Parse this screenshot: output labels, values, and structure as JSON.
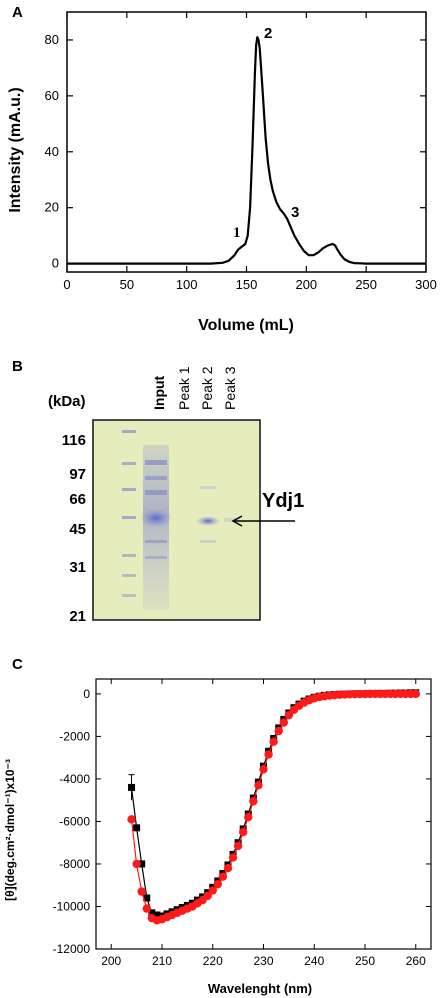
{
  "panels": {
    "a": "A",
    "b": "B",
    "c": "C"
  },
  "chart_data": [
    {
      "panel": "A",
      "type": "line",
      "xlabel": "Volume (mL)",
      "ylabel": "Intensity (mA.u.)",
      "xlim": [
        0,
        300
      ],
      "ylim": [
        -3,
        90
      ],
      "xticks": [
        0,
        50,
        100,
        150,
        200,
        250,
        300
      ],
      "yticks": [
        0,
        20,
        40,
        60,
        80
      ],
      "series": [
        {
          "x": [
            0,
            100,
            120,
            130,
            135,
            140,
            143,
            146,
            149,
            151,
            153,
            155,
            157,
            158,
            159,
            160,
            161,
            162,
            164,
            166,
            168,
            170,
            172,
            175,
            178,
            181,
            184,
            187,
            190,
            194,
            198,
            202,
            206,
            210,
            214,
            218,
            222,
            224,
            226,
            229,
            232,
            236,
            240,
            245,
            250,
            260,
            280,
            300
          ],
          "y": [
            0,
            0,
            0,
            0.3,
            1,
            3,
            5,
            6,
            7,
            10,
            20,
            42,
            68,
            78,
            81,
            80,
            77,
            71,
            58,
            45,
            36,
            30,
            26,
            22,
            19.5,
            18,
            16,
            13,
            10,
            7,
            4.5,
            3,
            3,
            4,
            5.5,
            6.5,
            7,
            6.5,
            5,
            3,
            1.5,
            0.6,
            0.2,
            0.1,
            0,
            0,
            0,
            0
          ],
          "color": "#000000"
        }
      ],
      "annotations": [
        "1",
        "2",
        "3"
      ]
    },
    {
      "panel": "B",
      "type": "gel",
      "axis_label": "(kDa)",
      "markers": [
        "116",
        "97",
        "66",
        "45",
        "31",
        "21"
      ],
      "lanes": [
        "Input",
        "Peak 1",
        "Peak 2",
        "Peak 3"
      ],
      "band_label": "Ydj1",
      "gel_color": "#e7ecbd"
    },
    {
      "panel": "C",
      "type": "scatter",
      "xlabel": "Wavelenght (nm)",
      "ylabel": "[θ](deg.cm²·dmol⁻¹)x10⁻³",
      "xlim": [
        197,
        263
      ],
      "ylim": [
        -12000,
        700
      ],
      "xticks": [
        200,
        210,
        220,
        230,
        240,
        250,
        260
      ],
      "yticks": [
        0,
        -2000,
        -4000,
        -6000,
        -8000,
        -10000,
        -12000
      ],
      "series": [
        {
          "marker": "square",
          "color": "#000000",
          "x": [
            204,
            205,
            206,
            207,
            208,
            209,
            210,
            211,
            212,
            213,
            214,
            215,
            216,
            217,
            218,
            219,
            220,
            221,
            222,
            223,
            224,
            225,
            226,
            227,
            228,
            229,
            230,
            231,
            232,
            233,
            234,
            235,
            236,
            237,
            238,
            239,
            240,
            241,
            242,
            243,
            244,
            245,
            246,
            247,
            248,
            249,
            250,
            251,
            252,
            253,
            254,
            255,
            256,
            257,
            258,
            259,
            260
          ],
          "y": [
            -4400,
            -6300,
            -8000,
            -9600,
            -10300,
            -10400,
            -10450,
            -10350,
            -10250,
            -10150,
            -10050,
            -9950,
            -9850,
            -9700,
            -9550,
            -9350,
            -9100,
            -8800,
            -8450,
            -8050,
            -7550,
            -7000,
            -6350,
            -5650,
            -4900,
            -4150,
            -3400,
            -2700,
            -2100,
            -1600,
            -1200,
            -900,
            -650,
            -480,
            -340,
            -240,
            -160,
            -110,
            -70,
            -45,
            -30,
            -20,
            -10,
            -5,
            0,
            0,
            0,
            10,
            10,
            20,
            20,
            30,
            30,
            40,
            40,
            50,
            50
          ]
        },
        {
          "marker": "circle",
          "color": "#ff1a1a",
          "x": [
            204,
            205,
            206,
            207,
            208,
            209,
            210,
            211,
            212,
            213,
            214,
            215,
            216,
            217,
            218,
            219,
            220,
            221,
            222,
            223,
            224,
            225,
            226,
            227,
            228,
            229,
            230,
            231,
            232,
            233,
            234,
            235,
            236,
            237,
            238,
            239,
            240,
            241,
            242,
            243,
            244,
            245,
            246,
            247,
            248,
            249,
            250,
            251,
            252,
            253,
            254,
            255,
            256,
            257,
            258,
            259,
            260
          ],
          "y": [
            -5900,
            -8000,
            -9300,
            -10100,
            -10550,
            -10650,
            -10600,
            -10500,
            -10400,
            -10300,
            -10200,
            -10100,
            -10000,
            -9850,
            -9700,
            -9500,
            -9250,
            -8950,
            -8600,
            -8200,
            -7700,
            -7150,
            -6500,
            -5800,
            -5050,
            -4300,
            -3550,
            -2850,
            -2250,
            -1750,
            -1350,
            -1000,
            -750,
            -560,
            -410,
            -300,
            -210,
            -150,
            -110,
            -80,
            -60,
            -40,
            -30,
            -20,
            -15,
            -10,
            -5,
            0,
            0,
            0,
            0,
            0,
            0,
            0,
            0,
            0,
            0
          ]
        }
      ]
    }
  ]
}
